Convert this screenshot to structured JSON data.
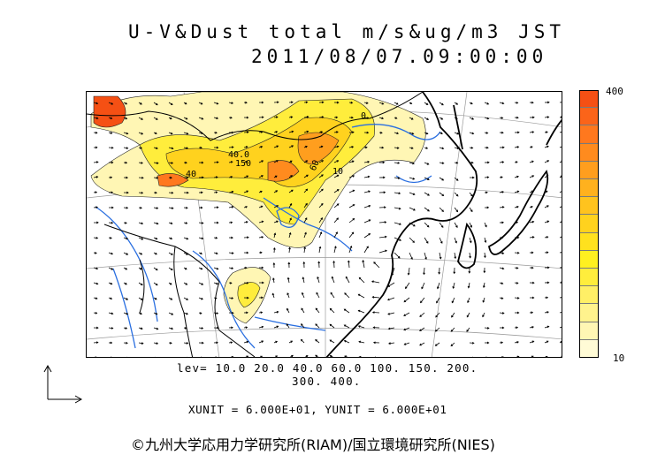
{
  "title": {
    "line1": "U-V&Dust total m/s&ug/m3 JST",
    "line2": "2011/08/07.09:00:00"
  },
  "colorbar": {
    "max_label": "400",
    "min_label": "10",
    "colors": [
      "#fffbd6",
      "#fff6b4",
      "#fff38d",
      "#ffef66",
      "#ffed3c",
      "#fff020",
      "#ffe11e",
      "#ffd21e",
      "#ffc31e",
      "#ffb11e",
      "#ff9e1e",
      "#ff8b1e",
      "#ff781e",
      "#fb6419",
      "#f55014"
    ]
  },
  "levels": {
    "line1": "lev= 10.0 20.0 40.0 60.0 100. 150. 200.",
    "line2": "300. 400."
  },
  "units_text": "XUNIT = 6.000E+01, YUNIT = 6.000E+01",
  "contour_labels": [
    "40.0",
    "150",
    "60",
    "40",
    "10",
    "0"
  ],
  "credit": "©九州大学応用力学研究所(RIAM)/国立環境研究所(NIES)"
}
